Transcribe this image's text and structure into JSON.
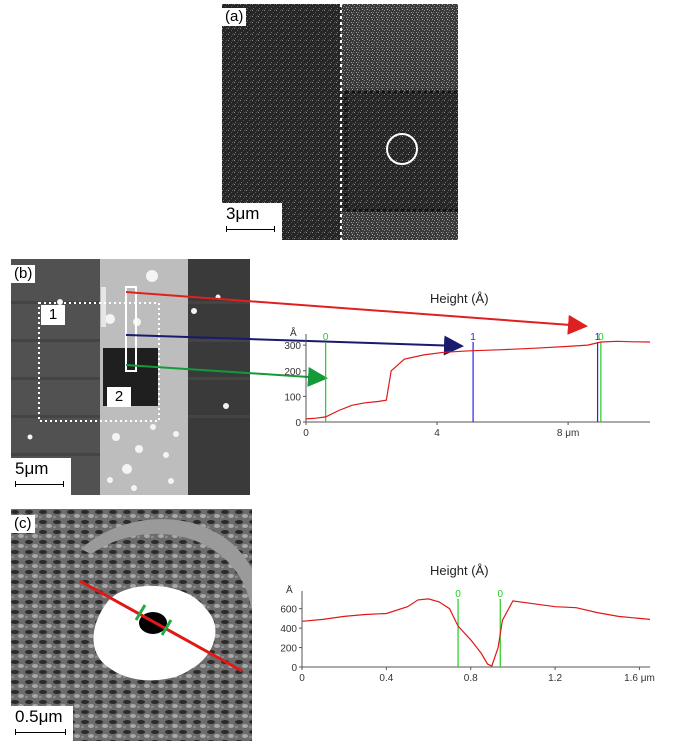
{
  "panels": {
    "a": {
      "label": "(a)",
      "scale": "3μm"
    },
    "b": {
      "label": "(b)",
      "scale": "5μm",
      "region1": "1",
      "region2": "2"
    },
    "c": {
      "label": "(c)",
      "scale": "0.5μm"
    }
  },
  "colors": {
    "profile": "#e01818",
    "marker_green": "#22cc22",
    "marker_blue": "#2222ee",
    "arrow_red": "#e02020",
    "arrow_navy": "#1a1a6e",
    "arrow_green": "#149a3a"
  },
  "chart_data": [
    {
      "type": "line",
      "title": "Height (Å)",
      "ylabel": "Å",
      "xunit": "μm",
      "xlim": [
        0,
        10.5
      ],
      "ylim": [
        0,
        320
      ],
      "x_ticks": [
        0,
        4,
        8
      ],
      "x_tick_labels": [
        "0",
        "4",
        "8 μm"
      ],
      "y_ticks": [
        0,
        100,
        200,
        300
      ],
      "y_tick_labels": [
        "0",
        "100",
        "200",
        "300"
      ],
      "series": [
        {
          "x": [
            0,
            0.3,
            0.6,
            1.0,
            1.4,
            1.8,
            2.2,
            2.45,
            2.6,
            3.0,
            3.6,
            4.2,
            5.0,
            6.0,
            7.0,
            8.0,
            8.6,
            9.0,
            9.5,
            10.0,
            10.5
          ],
          "y": [
            12,
            15,
            20,
            45,
            65,
            75,
            80,
            85,
            200,
            245,
            262,
            272,
            278,
            282,
            288,
            295,
            300,
            312,
            315,
            313,
            312
          ]
        }
      ],
      "markers": [
        {
          "x": 0.6,
          "label": "0",
          "color": "green"
        },
        {
          "x": 5.1,
          "label": "1",
          "color": "blue"
        },
        {
          "x": 8.9,
          "label": "1",
          "color": "blue"
        },
        {
          "x": 9.0,
          "label": "0",
          "color": "green"
        }
      ]
    },
    {
      "type": "line",
      "title": "Height (Å)",
      "ylabel": "Å",
      "xunit": "μm",
      "xlim": [
        0,
        1.65
      ],
      "ylim": [
        0,
        720
      ],
      "x_ticks": [
        0,
        0.4,
        0.8,
        1.2,
        1.6
      ],
      "x_tick_labels": [
        "0",
        "0.4",
        "0.8",
        "1.2",
        "1.6 μm"
      ],
      "y_ticks": [
        0,
        200,
        400,
        600
      ],
      "y_tick_labels": [
        "0",
        "200",
        "400",
        "600"
      ],
      "series": [
        {
          "x": [
            0,
            0.1,
            0.2,
            0.3,
            0.4,
            0.5,
            0.55,
            0.6,
            0.65,
            0.7,
            0.74,
            0.8,
            0.85,
            0.88,
            0.9,
            0.93,
            0.95,
            1.0,
            1.1,
            1.2,
            1.3,
            1.4,
            1.5,
            1.6,
            1.65
          ],
          "y": [
            470,
            490,
            520,
            540,
            550,
            620,
            690,
            700,
            670,
            600,
            420,
            280,
            140,
            30,
            10,
            200,
            480,
            680,
            650,
            620,
            610,
            560,
            520,
            500,
            490
          ]
        }
      ],
      "markers": [
        {
          "x": 0.74,
          "label": "0",
          "color": "green"
        },
        {
          "x": 0.94,
          "label": "0",
          "color": "green"
        }
      ]
    }
  ]
}
